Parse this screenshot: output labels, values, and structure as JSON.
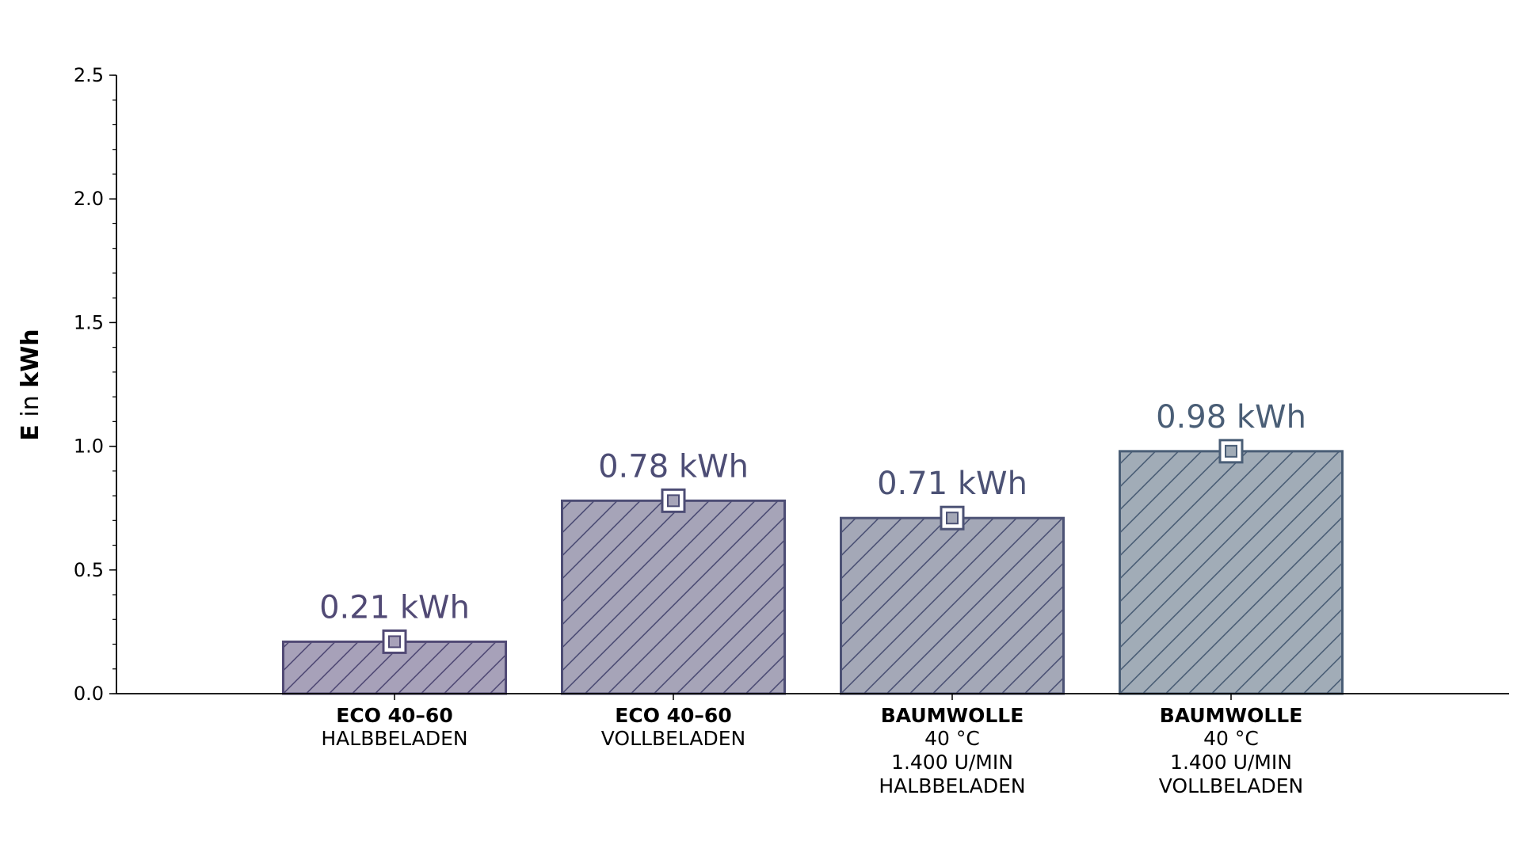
{
  "chart_data": {
    "type": "bar",
    "ylabel": {
      "bold": "E",
      "normal": " in ",
      "unit": "kWh"
    },
    "ylim": [
      0,
      2.5
    ],
    "yticks": [
      "0.0",
      "0.5",
      "1.0",
      "1.5",
      "2.0",
      "2.5"
    ],
    "grid": false,
    "legend": "none",
    "bars": [
      {
        "title": "ECO 40–60",
        "lines": [
          "HALBBELADEN"
        ],
        "value": 0.21,
        "label": "0.21 kWh",
        "fill": "#a7a1b9",
        "edge": "#514a75"
      },
      {
        "title": "ECO 40–60",
        "lines": [
          "VOLLBELADEN"
        ],
        "value": 0.78,
        "label": "0.78 kWh",
        "fill": "#a6a4b8",
        "edge": "#4d4d75"
      },
      {
        "title": "BAUMWOLLE",
        "lines": [
          "40 °C",
          "1.400 U/MIN",
          "HALBBELADEN"
        ],
        "value": 0.71,
        "label": "0.71 kWh",
        "fill": "#a4a8b7",
        "edge": "#4c5275"
      },
      {
        "title": "BAUMWOLLE",
        "lines": [
          "40 °C",
          "1.400 U/MIN",
          "VOLLBELADEN"
        ],
        "value": 0.98,
        "label": "0.98 kWh",
        "fill": "#a1acb7",
        "edge": "#4a5e76"
      }
    ]
  }
}
